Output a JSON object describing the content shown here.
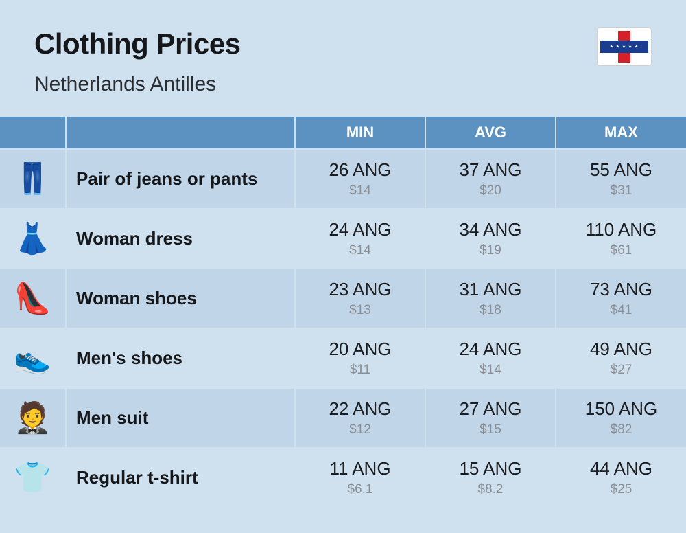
{
  "header": {
    "title": "Clothing Prices",
    "subtitle": "Netherlands Antilles"
  },
  "colors": {
    "page_bg": "#cfe1ef",
    "header_bg": "#5b92c2",
    "header_text": "#ffffff",
    "row_odd_bg": "#c0d5e8",
    "row_even_bg": "#cfe1ef",
    "text_main": "#15171a",
    "text_sub": "#8a8f95",
    "flag_red": "#d6202a",
    "flag_blue": "#1a3d8f"
  },
  "table": {
    "columns": [
      "MIN",
      "AVG",
      "MAX"
    ],
    "rows": [
      {
        "icon": "👖",
        "label": "Pair of jeans or pants",
        "min": {
          "local": "26 ANG",
          "usd": "$14"
        },
        "avg": {
          "local": "37 ANG",
          "usd": "$20"
        },
        "max": {
          "local": "55 ANG",
          "usd": "$31"
        }
      },
      {
        "icon": "👗",
        "label": "Woman dress",
        "min": {
          "local": "24 ANG",
          "usd": "$14"
        },
        "avg": {
          "local": "34 ANG",
          "usd": "$19"
        },
        "max": {
          "local": "110 ANG",
          "usd": "$61"
        }
      },
      {
        "icon": "👠",
        "label": "Woman shoes",
        "min": {
          "local": "23 ANG",
          "usd": "$13"
        },
        "avg": {
          "local": "31 ANG",
          "usd": "$18"
        },
        "max": {
          "local": "73 ANG",
          "usd": "$41"
        }
      },
      {
        "icon": "👟",
        "label": "Men's shoes",
        "min": {
          "local": "20 ANG",
          "usd": "$11"
        },
        "avg": {
          "local": "24 ANG",
          "usd": "$14"
        },
        "max": {
          "local": "49 ANG",
          "usd": "$27"
        }
      },
      {
        "icon": "🤵",
        "label": "Men suit",
        "min": {
          "local": "22 ANG",
          "usd": "$12"
        },
        "avg": {
          "local": "27 ANG",
          "usd": "$15"
        },
        "max": {
          "local": "150 ANG",
          "usd": "$82"
        }
      },
      {
        "icon": "👕",
        "label": "Regular t-shirt",
        "min": {
          "local": "11 ANG",
          "usd": "$6.1"
        },
        "avg": {
          "local": "15 ANG",
          "usd": "$8.2"
        },
        "max": {
          "local": "44 ANG",
          "usd": "$25"
        }
      }
    ]
  }
}
